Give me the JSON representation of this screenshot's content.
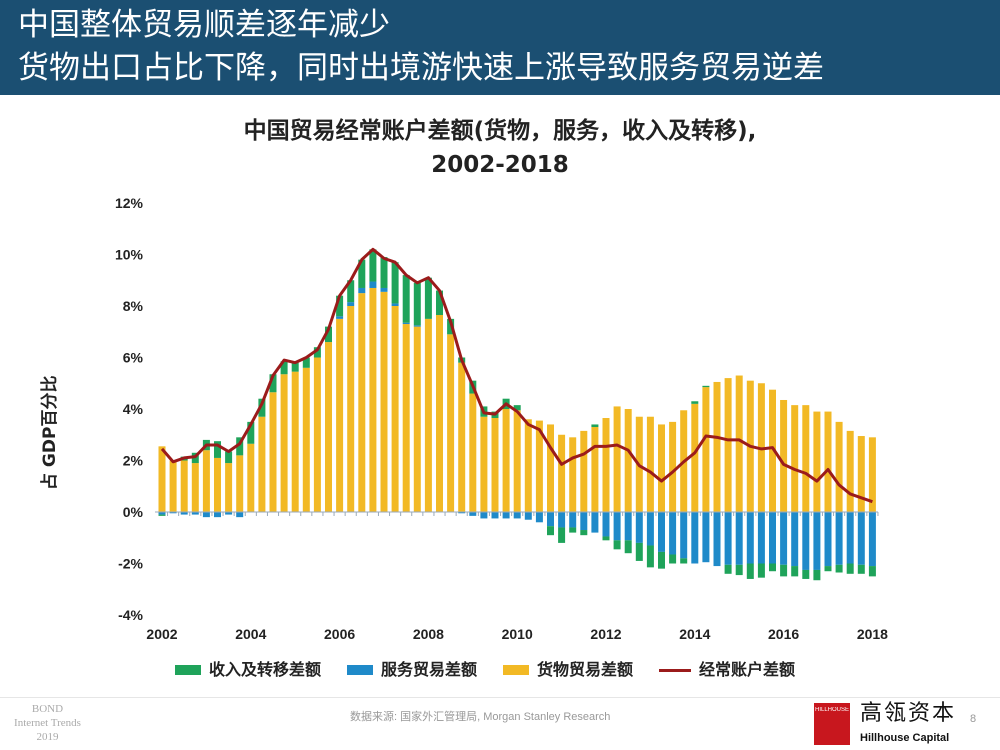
{
  "header": {
    "line1": "中国整体贸易顺差逐年减少",
    "line2": "货物出口占比下降，同时出境游快速上涨导致服务贸易逆差"
  },
  "footer": {
    "bond_line1": "BOND",
    "bond_line2": "Internet Trends",
    "bond_line3": "2019",
    "source": "数据来源: 国家外汇管理局, Morgan Stanley Research",
    "logo_small": "HILLHOUSE",
    "logo_cn": "高瓴资本",
    "logo_en": "Hillhouse Capital",
    "page_number": "8"
  },
  "chart_data": {
    "type": "bar",
    "title_line1": "中国贸易经常账户差额(货物，服务，收入及转移),",
    "title_line2": "2002-2018",
    "ylabel": "占 GDP百分比",
    "xlabel": "",
    "ylim": [
      -4,
      12
    ],
    "yticks": [
      "12%",
      "10%",
      "8%",
      "6%",
      "4%",
      "2%",
      "0%",
      "-2%",
      "-4%"
    ],
    "ytick_values": [
      12,
      10,
      8,
      6,
      4,
      2,
      0,
      -2,
      -4
    ],
    "xticks": [
      "2002",
      "2004",
      "2006",
      "2008",
      "2010",
      "2012",
      "2014",
      "2016",
      "2018"
    ],
    "x_start": "2002Q1",
    "frequency": "quarterly",
    "colors": {
      "income": "#1fa35a",
      "services": "#1f8ac9",
      "goods": "#f2b925",
      "current_account": "#9b1b1b"
    },
    "legend": [
      "收入及转移差额",
      "服务贸易差额",
      "货物贸易差额",
      "经常账户差额"
    ],
    "legend_position": "bottom",
    "series": {
      "goods": [
        2.55,
        2.0,
        2.0,
        1.9,
        2.4,
        2.1,
        1.9,
        2.2,
        2.65,
        3.7,
        4.65,
        5.35,
        5.45,
        5.6,
        6.0,
        6.6,
        7.5,
        8.0,
        8.5,
        8.7,
        8.55,
        8.0,
        7.3,
        7.2,
        7.5,
        7.65,
        6.9,
        5.8,
        4.6,
        3.7,
        3.65,
        4.0,
        3.95,
        3.6,
        3.55,
        3.4,
        3.0,
        2.9,
        3.15,
        3.3,
        3.65,
        4.1,
        4.0,
        3.7,
        3.7,
        3.4,
        3.5,
        3.95,
        4.2,
        4.85,
        5.05,
        5.2,
        5.3,
        5.1,
        5.0,
        4.75,
        4.35,
        4.15,
        4.15,
        3.9,
        3.9,
        3.5,
        3.15,
        2.95,
        2.9
      ],
      "services": [
        -0.1,
        -0.05,
        -0.1,
        -0.1,
        -0.2,
        -0.2,
        -0.1,
        -0.2,
        0,
        0,
        0,
        0,
        0,
        0,
        0,
        0,
        0.1,
        0.15,
        0.2,
        0.25,
        0.15,
        0.1,
        0.05,
        0.05,
        0,
        0,
        0,
        -0.05,
        -0.15,
        -0.25,
        -0.25,
        -0.25,
        -0.25,
        -0.3,
        -0.4,
        -0.55,
        -0.6,
        -0.6,
        -0.7,
        -0.8,
        -0.95,
        -1.1,
        -1.1,
        -1.2,
        -1.3,
        -1.55,
        -1.65,
        -1.8,
        -2.0,
        -1.95,
        -2.1,
        -2.05,
        -2.05,
        -2.0,
        -2.0,
        -2.0,
        -2.05,
        -2.1,
        -2.25,
        -2.25,
        -2.1,
        -2.05,
        -2.0,
        -2.05,
        -2.1
      ],
      "income": [
        -0.05,
        0,
        0.15,
        0.4,
        0.4,
        0.65,
        0.45,
        0.7,
        0.85,
        0.7,
        0.7,
        0.5,
        0.35,
        0.4,
        0.4,
        0.6,
        0.8,
        0.85,
        1.1,
        1.25,
        1.2,
        1.6,
        1.85,
        1.65,
        1.6,
        0.95,
        0.6,
        0.2,
        0.5,
        0.4,
        0.25,
        0.4,
        0.2,
        0,
        0,
        -0.35,
        -0.6,
        -0.2,
        -0.2,
        0.1,
        -0.15,
        -0.35,
        -0.5,
        -0.7,
        -0.85,
        -0.65,
        -0.35,
        -0.2,
        0.1,
        0.05,
        0,
        -0.35,
        -0.4,
        -0.6,
        -0.55,
        -0.3,
        -0.45,
        -0.4,
        -0.35,
        -0.4,
        -0.2,
        -0.3,
        -0.4,
        -0.35,
        -0.4
      ],
      "current_account": [
        2.45,
        1.95,
        2.1,
        2.15,
        2.6,
        2.6,
        2.35,
        2.65,
        3.4,
        4.2,
        5.3,
        5.9,
        5.8,
        6.0,
        6.3,
        7.1,
        8.4,
        9.0,
        9.8,
        10.2,
        9.85,
        9.7,
        9.2,
        8.9,
        9.1,
        8.6,
        7.4,
        5.9,
        4.9,
        3.85,
        3.8,
        4.2,
        3.9,
        3.4,
        3.2,
        2.5,
        1.85,
        2.1,
        2.25,
        2.55,
        2.55,
        2.6,
        2.4,
        1.8,
        1.55,
        1.2,
        1.55,
        1.95,
        2.3,
        2.95,
        2.9,
        2.8,
        2.8,
        2.55,
        2.45,
        2.5,
        1.85,
        1.65,
        1.5,
        1.2,
        1.65,
        1.05,
        0.7,
        0.55,
        0.4
      ]
    }
  }
}
